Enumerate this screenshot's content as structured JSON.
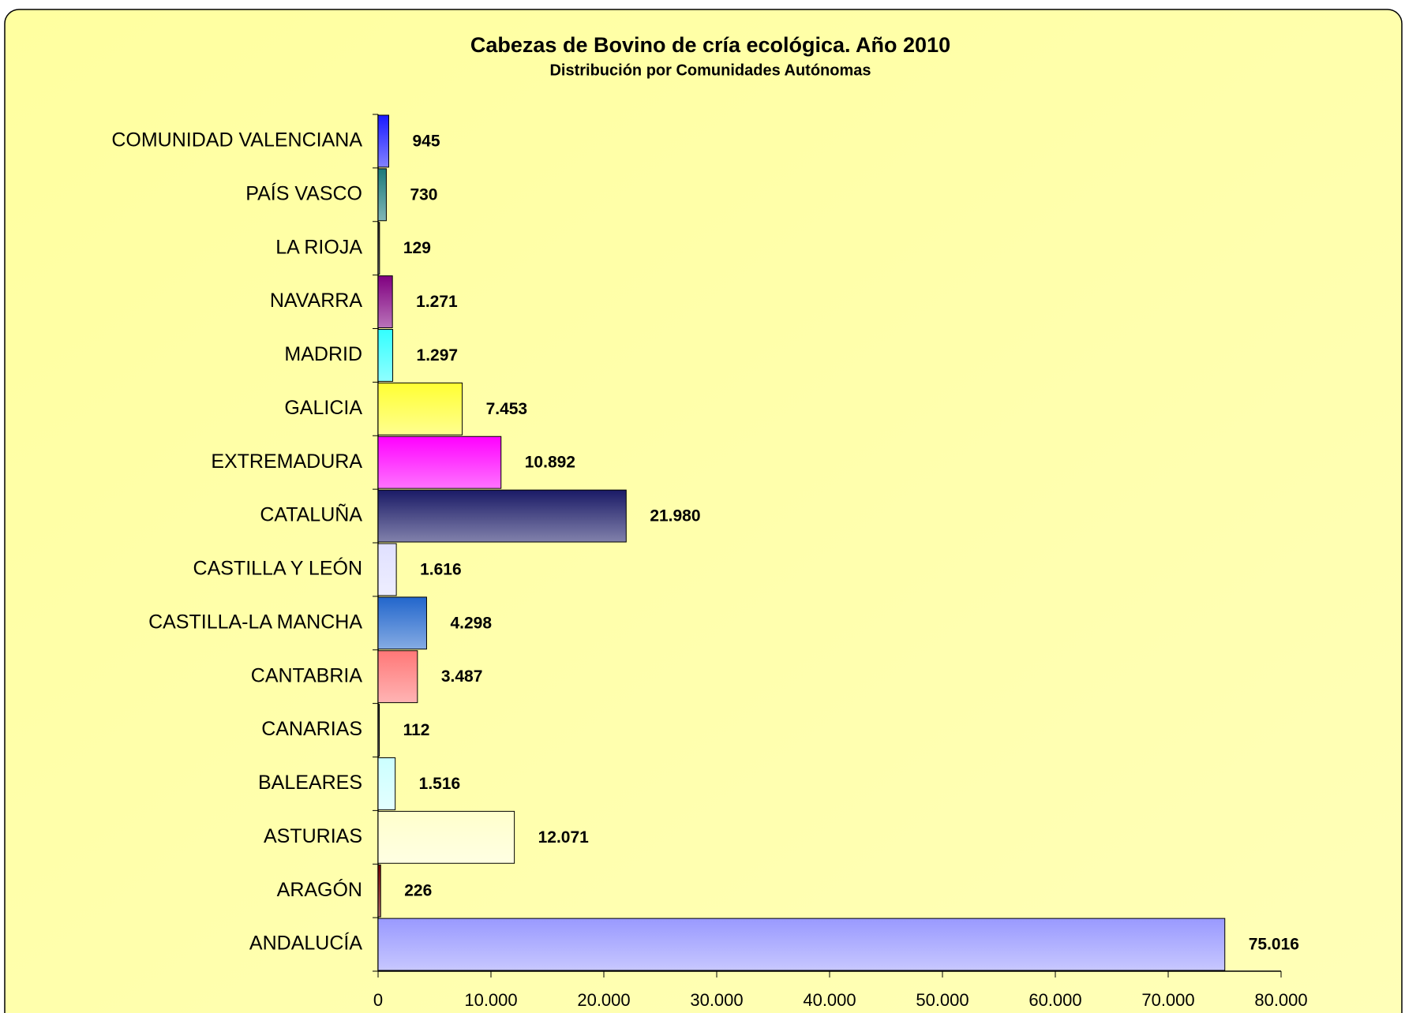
{
  "chart_data": {
    "type": "hbar",
    "title": "Cabezas de Bovino de cría ecológica. Año 2010",
    "subtitle": "Distribución por Comunidades Autónomas",
    "categories": [
      "COMUNIDAD VALENCIANA",
      "PAÍS VASCO",
      "LA RIOJA",
      "NAVARRA",
      "MADRID",
      "GALICIA",
      "EXTREMADURA",
      "CATALUÑA",
      "CASTILLA Y LEÓN",
      "CASTILLA-LA MANCHA",
      "CANTABRIA",
      "CANARIAS",
      "BALEARES",
      "ASTURIAS",
      "ARAGÓN",
      "ANDALUCÍA"
    ],
    "values": [
      945,
      730,
      129,
      1271,
      1297,
      7453,
      10892,
      21980,
      1616,
      4298,
      3487,
      112,
      1516,
      12071,
      226,
      75016
    ],
    "value_labels": [
      "945",
      "730",
      "129",
      "1.271",
      "1.297",
      "7.453",
      "10.892",
      "21.980",
      "1.616",
      "4.298",
      "3.487",
      "112",
      "1.516",
      "12.071",
      "226",
      "75.016"
    ],
    "colors": [
      "#1a1aff",
      "#1a7a7a",
      "#333333",
      "#800080",
      "#33ffff",
      "#ffff33",
      "#ff00ff",
      "#1a1a66",
      "#e0e0ff",
      "#2266cc",
      "#ff7777",
      "#333333",
      "#ccffff",
      "#ffffcc",
      "#800000",
      "#9999ff"
    ],
    "xlim": [
      0,
      80000
    ],
    "xticks": [
      0,
      {
        "value": 10000,
        "label": "10.000"
      },
      {
        "value": 20000,
        "label": "20.000"
      },
      {
        "value": 30000,
        "label": "30.000"
      },
      {
        "value": 40000,
        "label": "40.000"
      },
      {
        "value": 50000,
        "label": "50.000"
      },
      {
        "value": 60000,
        "label": "60.000"
      },
      {
        "value": 70000,
        "label": "70.000"
      },
      {
        "value": 80000,
        "label": "80.000"
      }
    ],
    "grid": false
  }
}
